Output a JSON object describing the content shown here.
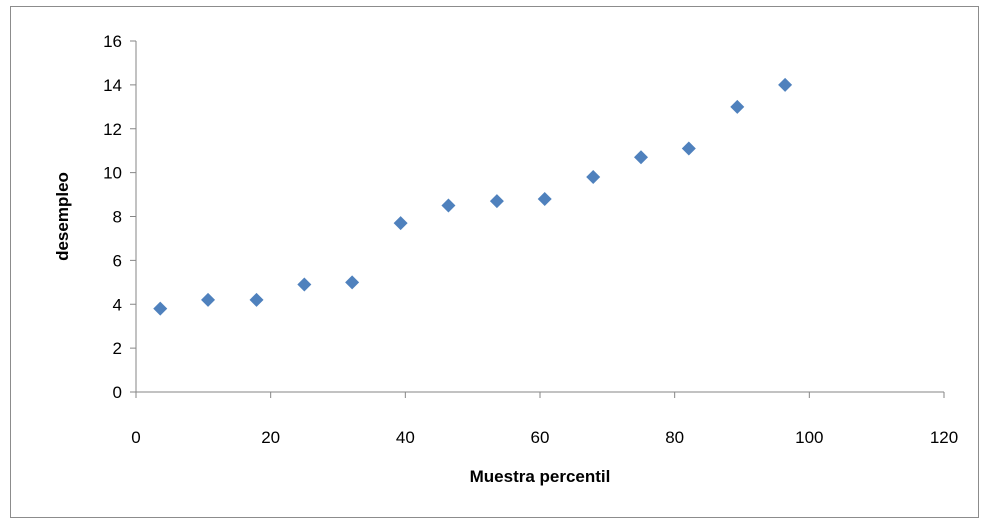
{
  "chart_data": {
    "type": "scatter",
    "xlabel": "Muestra percentil",
    "ylabel": "desempleo",
    "xlim": [
      0,
      120
    ],
    "ylim": [
      0,
      16
    ],
    "xticks": [
      0,
      20,
      40,
      60,
      80,
      100,
      120
    ],
    "yticks": [
      0,
      2,
      4,
      6,
      8,
      10,
      12,
      14,
      16
    ],
    "grid": false,
    "legend": "none",
    "marker": "diamond",
    "marker_color": "#4f81bd",
    "series": [
      {
        "points": [
          {
            "x": 3.6,
            "y": 3.8
          },
          {
            "x": 10.7,
            "y": 4.2
          },
          {
            "x": 17.9,
            "y": 4.2
          },
          {
            "x": 25.0,
            "y": 4.9
          },
          {
            "x": 32.1,
            "y": 5.0
          },
          {
            "x": 39.3,
            "y": 7.7
          },
          {
            "x": 46.4,
            "y": 8.5
          },
          {
            "x": 53.6,
            "y": 8.7
          },
          {
            "x": 60.7,
            "y": 8.8
          },
          {
            "x": 67.9,
            "y": 9.8
          },
          {
            "x": 75.0,
            "y": 10.7
          },
          {
            "x": 82.1,
            "y": 11.1
          },
          {
            "x": 89.3,
            "y": 13.0
          },
          {
            "x": 96.4,
            "y": 14.0
          }
        ]
      }
    ]
  }
}
